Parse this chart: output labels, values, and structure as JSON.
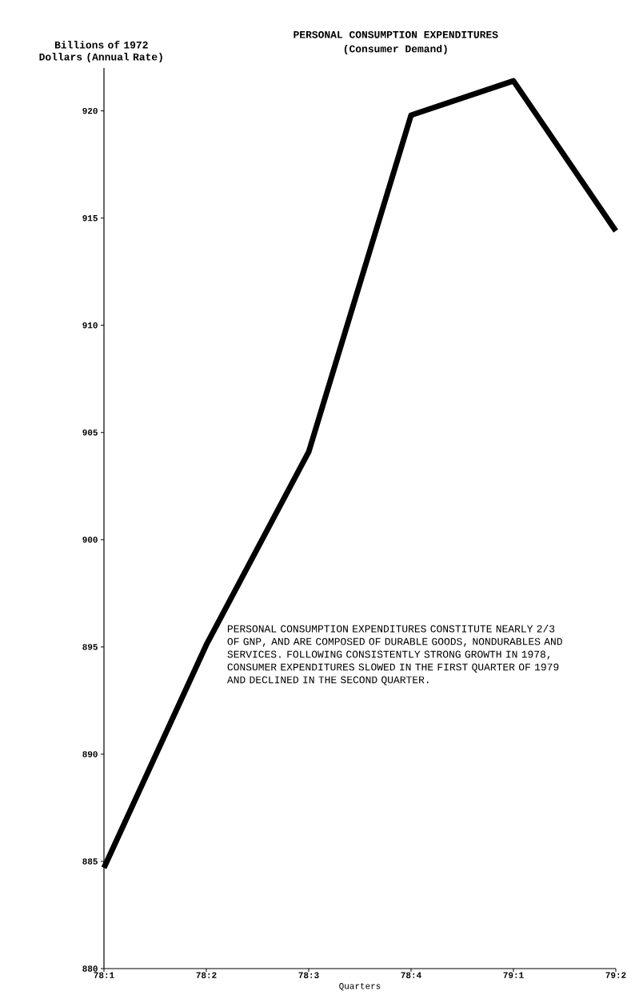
{
  "chart_data": {
    "type": "line",
    "title": "PERSONAL  CONSUMPTION  EXPENDITURES",
    "subtitle": "(Consumer Demand)",
    "xlabel": "Quarters",
    "ylabel": "Billions of 1972 Dollars (Annual Rate)",
    "categories": [
      "78:1",
      "78:2",
      "78:3",
      "78:4",
      "79:1",
      "79:2"
    ],
    "series": [
      {
        "color": "#000000",
        "values": [
          884.7,
          895.1,
          904.1,
          919.8,
          921.4,
          914.4
        ]
      }
    ],
    "ylim": [
      880,
      922
    ],
    "yticks": [
      880,
      885,
      890,
      895,
      900,
      905,
      910,
      915,
      920
    ],
    "marker": "none",
    "line_style": "solid",
    "annotations": [
      "PERSONAL CONSUMPTION EXPENDITURES CONSTITUTE NEARLY 2/3 OF GNP, AND ARE COMPOSED OF DURABLE GOODS, NONDURABLES AND SERVICES.  FOLLOWING CONSISTENTLY STRONG GROWTH IN 1978, CONSUMER EXPENDITURES SLOWED IN THE FIRST QUARTER OF 1979 AND DECLINED IN THE SECOND QUARTER."
    ]
  }
}
